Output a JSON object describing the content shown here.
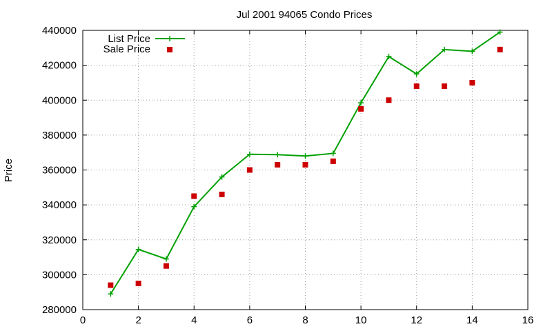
{
  "chart_data": {
    "type": "line",
    "title": "Jul 2001 94065 Condo Prices",
    "xlabel": "",
    "ylabel": "Price",
    "xlim": [
      0,
      16
    ],
    "ylim": [
      280000,
      440000
    ],
    "x_ticks": [
      0,
      2,
      4,
      6,
      8,
      10,
      12,
      14,
      16
    ],
    "y_ticks": [
      280000,
      300000,
      320000,
      340000,
      360000,
      380000,
      400000,
      420000,
      440000
    ],
    "grid": true,
    "legend_position": "top-left",
    "series": [
      {
        "name": "List Price",
        "style": "line+cross",
        "color": "#00a000",
        "x": [
          1,
          2,
          3,
          4,
          5,
          6,
          7,
          8,
          9,
          10,
          11,
          12,
          13,
          14,
          15
        ],
        "values": [
          289000,
          314500,
          309000,
          339000,
          356000,
          369000,
          368800,
          368000,
          369500,
          398500,
          425000,
          415000,
          429000,
          428000,
          439000
        ]
      },
      {
        "name": "Sale Price",
        "style": "square",
        "color": "#cc0000",
        "x": [
          1,
          2,
          3,
          4,
          5,
          6,
          7,
          8,
          9,
          10,
          11,
          12,
          13,
          14,
          15
        ],
        "values": [
          294000,
          295000,
          305000,
          345000,
          346000,
          360000,
          363000,
          363000,
          365000,
          395000,
          400000,
          408000,
          408000,
          410000,
          429000
        ]
      }
    ]
  }
}
